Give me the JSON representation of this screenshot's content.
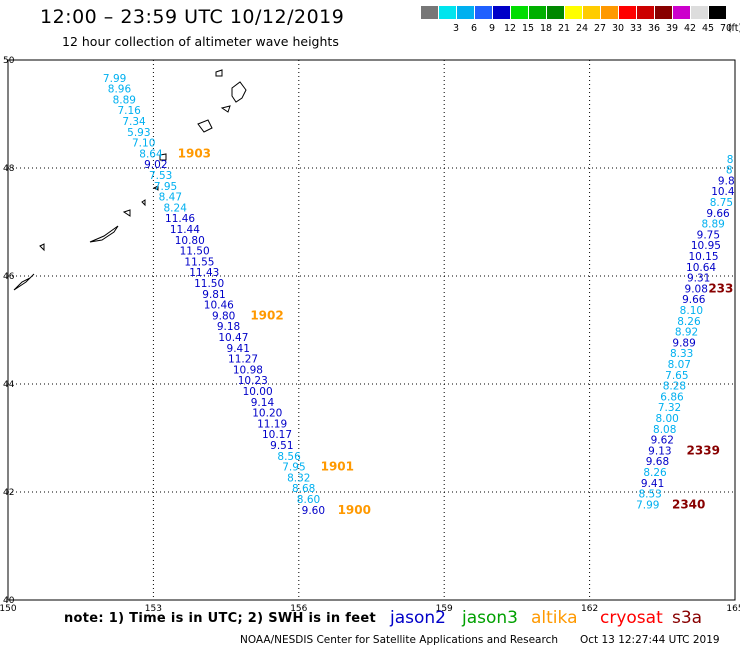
{
  "header": {
    "title": "12:00 – 23:59 UTC 10/12/2019",
    "subtitle": "12 hour collection of altimeter wave heights"
  },
  "color_scale": {
    "unit": "(ft)",
    "entries": [
      {
        "label": "",
        "color": "#777777"
      },
      {
        "label": "3",
        "color": "#00e5ee"
      },
      {
        "label": "6",
        "color": "#00b0f0"
      },
      {
        "label": "9",
        "color": "#2060ff"
      },
      {
        "label": "12",
        "color": "#0000c8"
      },
      {
        "label": "15",
        "color": "#00dd00"
      },
      {
        "label": "18",
        "color": "#00b000"
      },
      {
        "label": "21",
        "color": "#008800"
      },
      {
        "label": "24",
        "color": "#ffff00"
      },
      {
        "label": "27",
        "color": "#ffcc00"
      },
      {
        "label": "30",
        "color": "#ff9900"
      },
      {
        "label": "33",
        "color": "#ff0000"
      },
      {
        "label": "36",
        "color": "#cc0000"
      },
      {
        "label": "39",
        "color": "#880000"
      },
      {
        "label": "42",
        "color": "#cc00cc"
      },
      {
        "label": "45",
        "color": "#dddddd"
      },
      {
        "label": "70",
        "color": "#000000"
      }
    ]
  },
  "map": {
    "lon_range": [
      150,
      165
    ],
    "lat_range": [
      40,
      50
    ],
    "lon_ticks": [
      "150",
      "153",
      "156",
      "159",
      "162",
      "165"
    ],
    "lat_ticks": [
      "50",
      "48",
      "46",
      "44",
      "42",
      "40"
    ]
  },
  "wave_points": [
    {
      "lon": 152.2,
      "lat": 49.67,
      "value": "7.99",
      "color": "#00b0f0"
    },
    {
      "lon": 152.3,
      "lat": 49.47,
      "value": "8.96",
      "color": "#00b0f0"
    },
    {
      "lon": 152.4,
      "lat": 49.27,
      "value": "8.89",
      "color": "#00b0f0"
    },
    {
      "lon": 152.5,
      "lat": 49.07,
      "value": "7.16",
      "color": "#00b0f0"
    },
    {
      "lon": 152.6,
      "lat": 48.87,
      "value": "7.34",
      "color": "#00b0f0"
    },
    {
      "lon": 152.7,
      "lat": 48.67,
      "value": "5.93",
      "color": "#00b0f0"
    },
    {
      "lon": 152.8,
      "lat": 48.47,
      "value": "7.10",
      "color": "#00b0f0"
    },
    {
      "lon": 152.95,
      "lat": 48.27,
      "value": "8.64",
      "color": "#00b0f0"
    },
    {
      "lon": 153.05,
      "lat": 48.07,
      "value": "9.02",
      "color": "#0000c8"
    },
    {
      "lon": 153.15,
      "lat": 47.87,
      "value": "7.53",
      "color": "#00b0f0"
    },
    {
      "lon": 153.25,
      "lat": 47.67,
      "value": "7.95",
      "color": "#00b0f0"
    },
    {
      "lon": 153.35,
      "lat": 47.47,
      "value": "8.47",
      "color": "#00b0f0"
    },
    {
      "lon": 153.45,
      "lat": 47.27,
      "value": "8.24",
      "color": "#00b0f0"
    },
    {
      "lon": 153.55,
      "lat": 47.07,
      "value": "11.46",
      "color": "#0000c8"
    },
    {
      "lon": 153.65,
      "lat": 46.87,
      "value": "11.44",
      "color": "#0000c8"
    },
    {
      "lon": 153.75,
      "lat": 46.67,
      "value": "10.80",
      "color": "#0000c8"
    },
    {
      "lon": 153.85,
      "lat": 46.47,
      "value": "11.50",
      "color": "#0000c8"
    },
    {
      "lon": 153.95,
      "lat": 46.27,
      "value": "11.55",
      "color": "#0000c8"
    },
    {
      "lon": 154.05,
      "lat": 46.07,
      "value": "11.43",
      "color": "#0000c8"
    },
    {
      "lon": 154.15,
      "lat": 45.87,
      "value": "11.50",
      "color": "#0000c8"
    },
    {
      "lon": 154.25,
      "lat": 45.67,
      "value": "9.81",
      "color": "#0000c8"
    },
    {
      "lon": 154.35,
      "lat": 45.47,
      "value": "10.46",
      "color": "#0000c8"
    },
    {
      "lon": 154.45,
      "lat": 45.27,
      "value": "9.80",
      "color": "#0000c8"
    },
    {
      "lon": 154.55,
      "lat": 45.07,
      "value": "9.18",
      "color": "#0000c8"
    },
    {
      "lon": 154.65,
      "lat": 44.87,
      "value": "10.47",
      "color": "#0000c8"
    },
    {
      "lon": 154.75,
      "lat": 44.67,
      "value": "9.41",
      "color": "#0000c8"
    },
    {
      "lon": 154.85,
      "lat": 44.47,
      "value": "11.27",
      "color": "#0000c8"
    },
    {
      "lon": 154.95,
      "lat": 44.27,
      "value": "10.98",
      "color": "#0000c8"
    },
    {
      "lon": 155.05,
      "lat": 44.07,
      "value": "10.23",
      "color": "#0000c8"
    },
    {
      "lon": 155.15,
      "lat": 43.87,
      "value": "10.00",
      "color": "#0000c8"
    },
    {
      "lon": 155.25,
      "lat": 43.67,
      "value": "9.14",
      "color": "#0000c8"
    },
    {
      "lon": 155.35,
      "lat": 43.47,
      "value": "10.20",
      "color": "#0000c8"
    },
    {
      "lon": 155.45,
      "lat": 43.27,
      "value": "11.19",
      "color": "#0000c8"
    },
    {
      "lon": 155.55,
      "lat": 43.07,
      "value": "10.17",
      "color": "#0000c8"
    },
    {
      "lon": 155.65,
      "lat": 42.87,
      "value": "9.51",
      "color": "#0000c8"
    },
    {
      "lon": 155.8,
      "lat": 42.67,
      "value": "8.56",
      "color": "#00b0f0"
    },
    {
      "lon": 155.9,
      "lat": 42.47,
      "value": "7.95",
      "color": "#00b0f0"
    },
    {
      "lon": 156.0,
      "lat": 42.27,
      "value": "8.32",
      "color": "#00b0f0"
    },
    {
      "lon": 156.1,
      "lat": 42.07,
      "value": "8.68",
      "color": "#00b0f0"
    },
    {
      "lon": 156.2,
      "lat": 41.87,
      "value": "8.60",
      "color": "#00b0f0"
    },
    {
      "lon": 156.3,
      "lat": 41.67,
      "value": "9.60",
      "color": "#0000c8"
    },
    {
      "lon": 163.2,
      "lat": 41.77,
      "value": "7.99",
      "color": "#00b0f0"
    },
    {
      "lon": 163.25,
      "lat": 41.97,
      "value": "8.53",
      "color": "#00b0f0"
    },
    {
      "lon": 163.3,
      "lat": 42.17,
      "value": "9.41",
      "color": "#0000c8"
    },
    {
      "lon": 163.35,
      "lat": 42.37,
      "value": "8.26",
      "color": "#00b0f0"
    },
    {
      "lon": 163.4,
      "lat": 42.57,
      "value": "9.68",
      "color": "#0000c8"
    },
    {
      "lon": 163.45,
      "lat": 42.77,
      "value": "9.13",
      "color": "#0000c8"
    },
    {
      "lon": 163.5,
      "lat": 42.97,
      "value": "9.62",
      "color": "#0000c8"
    },
    {
      "lon": 163.55,
      "lat": 43.17,
      "value": "8.08",
      "color": "#00b0f0"
    },
    {
      "lon": 163.6,
      "lat": 43.37,
      "value": "8.00",
      "color": "#00b0f0"
    },
    {
      "lon": 163.65,
      "lat": 43.57,
      "value": "7.32",
      "color": "#00b0f0"
    },
    {
      "lon": 163.7,
      "lat": 43.77,
      "value": "6.86",
      "color": "#00b0f0"
    },
    {
      "lon": 163.75,
      "lat": 43.97,
      "value": "8.28",
      "color": "#00b0f0"
    },
    {
      "lon": 163.8,
      "lat": 44.17,
      "value": "7.65",
      "color": "#00b0f0"
    },
    {
      "lon": 163.85,
      "lat": 44.37,
      "value": "8.07",
      "color": "#00b0f0"
    },
    {
      "lon": 163.9,
      "lat": 44.57,
      "value": "8.33",
      "color": "#00b0f0"
    },
    {
      "lon": 163.95,
      "lat": 44.77,
      "value": "9.89",
      "color": "#0000c8"
    },
    {
      "lon": 164.0,
      "lat": 44.97,
      "value": "8.92",
      "color": "#00b0f0"
    },
    {
      "lon": 164.05,
      "lat": 45.17,
      "value": "8.26",
      "color": "#00b0f0"
    },
    {
      "lon": 164.1,
      "lat": 45.37,
      "value": "8.10",
      "color": "#00b0f0"
    },
    {
      "lon": 164.15,
      "lat": 45.57,
      "value": "9.66",
      "color": "#0000c8"
    },
    {
      "lon": 164.2,
      "lat": 45.77,
      "value": "9.08",
      "color": "#0000c8"
    },
    {
      "lon": 164.25,
      "lat": 45.97,
      "value": "9.31",
      "color": "#0000c8"
    },
    {
      "lon": 164.3,
      "lat": 46.17,
      "value": "10.64",
      "color": "#0000c8"
    },
    {
      "lon": 164.35,
      "lat": 46.37,
      "value": "10.15",
      "color": "#0000c8"
    },
    {
      "lon": 164.4,
      "lat": 46.57,
      "value": "10.95",
      "color": "#0000c8"
    },
    {
      "lon": 164.45,
      "lat": 46.77,
      "value": "9.75",
      "color": "#0000c8"
    },
    {
      "lon": 164.55,
      "lat": 46.97,
      "value": "8.89",
      "color": "#00b0f0"
    },
    {
      "lon": 164.65,
      "lat": 47.17,
      "value": "9.66",
      "color": "#0000c8"
    },
    {
      "lon": 164.72,
      "lat": 47.37,
      "value": "8.75",
      "color": "#00b0f0"
    },
    {
      "lon": 164.75,
      "lat": 47.57,
      "value": "10.4",
      "color": "#0000c8"
    },
    {
      "lon": 164.82,
      "lat": 47.77,
      "value": "9.8",
      "color": "#0000c8"
    },
    {
      "lon": 164.88,
      "lat": 47.97,
      "value": "8",
      "color": "#00b0f0"
    },
    {
      "lon": 164.9,
      "lat": 48.17,
      "value": "8",
      "color": "#00b0f0"
    }
  ],
  "time_labels": [
    {
      "lon": 153.5,
      "lat": 48.27,
      "text": "1903",
      "color": "#ff9900"
    },
    {
      "lon": 155.0,
      "lat": 45.27,
      "text": "1902",
      "color": "#ff9900"
    },
    {
      "lon": 156.45,
      "lat": 42.47,
      "text": "1901",
      "color": "#ff9900"
    },
    {
      "lon": 156.8,
      "lat": 41.67,
      "text": "1900",
      "color": "#ff9900"
    },
    {
      "lon": 164.45,
      "lat": 45.77,
      "text": "233",
      "color": "#880000"
    },
    {
      "lon": 164.0,
      "lat": 42.77,
      "text": "2339",
      "color": "#880000"
    },
    {
      "lon": 163.7,
      "lat": 41.77,
      "text": "2340",
      "color": "#880000"
    }
  ],
  "note": "note: 1) Time is in UTC; 2) SWH is in feet",
  "satellites": [
    {
      "name": "jason2",
      "color": "#0000c8"
    },
    {
      "name": "jason3",
      "color": "#00a000"
    },
    {
      "name": "altika",
      "color": "#ff9900"
    },
    {
      "name": "cryosat",
      "color": "#ff0000"
    },
    {
      "name": "s3a",
      "color": "#880000"
    }
  ],
  "footer": {
    "credit": "NOAA/NESDIS Center for Satellite Applications and Research",
    "timestamp": "Oct 13 12:27:44 UTC 2019"
  }
}
